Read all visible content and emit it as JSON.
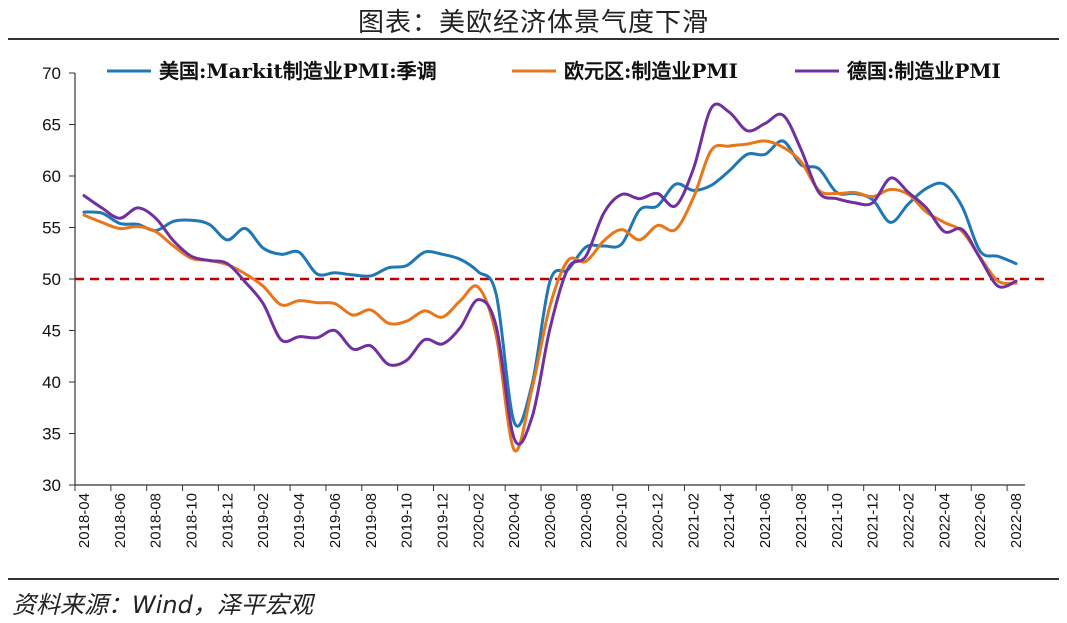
{
  "title": "图表：美欧经济体景气度下滑",
  "source": "资料来源：Wind，泽平宏观",
  "chart_data": {
    "type": "line",
    "title": "图表：美欧经济体景气度下滑",
    "ylim": [
      30,
      70
    ],
    "yticks": [
      30,
      35,
      40,
      45,
      50,
      55,
      60,
      65,
      70
    ],
    "xtick_labels": [
      "2018-04",
      "2018-06",
      "2018-08",
      "2018-10",
      "2018-12",
      "2019-02",
      "2019-04",
      "2019-06",
      "2019-08",
      "2019-10",
      "2019-12",
      "2020-02",
      "2020-04",
      "2020-06",
      "2020-08",
      "2020-10",
      "2020-12",
      "2021-02",
      "2021-04",
      "2021-06",
      "2021-08",
      "2021-10",
      "2021-12",
      "2022-02",
      "2022-04",
      "2022-06",
      "2022-08"
    ],
    "x": [
      "2018-04",
      "2018-05",
      "2018-06",
      "2018-07",
      "2018-08",
      "2018-09",
      "2018-10",
      "2018-11",
      "2018-12",
      "2019-01",
      "2019-02",
      "2019-03",
      "2019-04",
      "2019-05",
      "2019-06",
      "2019-07",
      "2019-08",
      "2019-09",
      "2019-10",
      "2019-11",
      "2019-12",
      "2020-01",
      "2020-02",
      "2020-03",
      "2020-04",
      "2020-05",
      "2020-06",
      "2020-07",
      "2020-08",
      "2020-09",
      "2020-10",
      "2020-11",
      "2020-12",
      "2021-01",
      "2021-02",
      "2021-03",
      "2021-04",
      "2021-05",
      "2021-06",
      "2021-07",
      "2021-08",
      "2021-09",
      "2021-10",
      "2021-11",
      "2021-12",
      "2022-01",
      "2022-02",
      "2022-03",
      "2022-04",
      "2022-05",
      "2022-06",
      "2022-07",
      "2022-08"
    ],
    "reference_line": {
      "y": 50,
      "color": "#c00000",
      "style": "dashed"
    },
    "legend_position": "top",
    "grid": false,
    "series": [
      {
        "name": "美国:Markit制造业PMI:季调",
        "color": "#1f77b4",
        "values": [
          56.5,
          56.4,
          55.4,
          55.3,
          54.7,
          55.6,
          55.7,
          55.3,
          53.8,
          54.9,
          53.0,
          52.4,
          52.6,
          50.5,
          50.6,
          50.4,
          50.3,
          51.1,
          51.3,
          52.6,
          52.4,
          51.9,
          50.7,
          48.5,
          36.1,
          39.8,
          49.8,
          50.9,
          53.1,
          53.2,
          53.4,
          56.7,
          57.1,
          59.2,
          58.6,
          59.1,
          60.5,
          62.1,
          62.1,
          63.4,
          61.1,
          60.7,
          58.4,
          58.3,
          57.7,
          55.5,
          57.3,
          58.8,
          59.2,
          57.0,
          52.7,
          52.2,
          51.5
        ]
      },
      {
        "name": "欧元区:制造业PMI",
        "color": "#e8761b",
        "values": [
          56.2,
          55.5,
          54.9,
          55.1,
          54.6,
          53.2,
          52.0,
          51.8,
          51.4,
          50.5,
          49.3,
          47.5,
          47.9,
          47.7,
          47.6,
          46.5,
          47.0,
          45.7,
          45.9,
          46.9,
          46.3,
          47.9,
          49.2,
          44.5,
          33.4,
          39.4,
          47.4,
          51.8,
          51.7,
          53.7,
          54.8,
          53.8,
          55.2,
          54.8,
          57.9,
          62.5,
          62.9,
          63.1,
          63.4,
          62.8,
          61.4,
          58.6,
          58.3,
          58.4,
          58.0,
          58.7,
          58.2,
          56.5,
          55.5,
          54.6,
          52.1,
          49.8,
          49.6
        ]
      },
      {
        "name": "德国:制造业PMI",
        "color": "#7030a0",
        "values": [
          58.1,
          56.9,
          55.9,
          56.9,
          55.9,
          53.7,
          52.2,
          51.8,
          51.5,
          49.7,
          47.6,
          44.1,
          44.4,
          44.3,
          45.0,
          43.2,
          43.5,
          41.7,
          42.1,
          44.1,
          43.7,
          45.3,
          48.0,
          45.4,
          34.5,
          36.6,
          45.2,
          51.0,
          52.2,
          56.4,
          58.2,
          57.8,
          58.3,
          57.1,
          60.7,
          66.6,
          66.2,
          64.4,
          65.1,
          65.9,
          62.6,
          58.4,
          57.8,
          57.4,
          57.4,
          59.8,
          58.4,
          56.9,
          54.6,
          54.8,
          52.0,
          49.3,
          49.8
        ]
      }
    ]
  }
}
